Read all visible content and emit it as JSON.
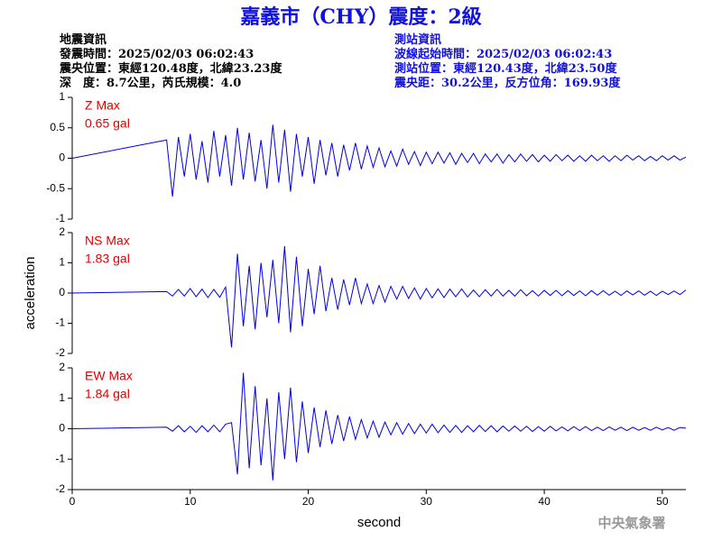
{
  "header": {
    "title": "嘉義市（CHY）震度：2級",
    "left": [
      "地震資訊",
      "發震時間：2025/02/03 06:02:43",
      "震央位置：東經120.48度，北緯23.23度",
      "深　度：8.7公里，芮氏規模：4.0"
    ],
    "right": [
      "測站資訊",
      "波線起始時間：2025/02/03 06:02:43",
      "測站位置：東經120.43度，北緯23.50度",
      "震央距：30.2公里，反方位角：169.93度"
    ]
  },
  "footer": "中央氣象署",
  "chart_data": [
    {
      "type": "line",
      "label": "Z Max",
      "max_label": "0.65 gal",
      "xlim": [
        0,
        52
      ],
      "ylim": [
        -1,
        1
      ],
      "yticks": [
        1,
        0.5,
        0,
        -0.5,
        -1
      ],
      "x": [
        0,
        8,
        8.5,
        9,
        9.5,
        10,
        10.5,
        11,
        11.5,
        12,
        12.5,
        13,
        13.5,
        14,
        14.5,
        15,
        15.5,
        16,
        16.5,
        17,
        17.5,
        18,
        18.5,
        19,
        19.5,
        20,
        20.5,
        21,
        21.5,
        22,
        22.5,
        23,
        23.5,
        24,
        24.5,
        25,
        25.5,
        26,
        26.5,
        27,
        27.5,
        28,
        28.5,
        29,
        29.5,
        30,
        30.5,
        31,
        31.5,
        32,
        32.5,
        33,
        33.5,
        34,
        34.5,
        35,
        35.5,
        36,
        36.5,
        37,
        37.5,
        38,
        38.5,
        39,
        39.5,
        40,
        40.5,
        41,
        41.5,
        42,
        42.5,
        43,
        43.5,
        44,
        44.5,
        45,
        45.5,
        46,
        46.5,
        47,
        47.5,
        48,
        48.5,
        49,
        49.5,
        50,
        50.5,
        51,
        51.5,
        52
      ],
      "series": [
        {
          "color": "#0000e0",
          "values": [
            0,
            0.3,
            -0.63,
            0.35,
            -0.3,
            0.4,
            -0.35,
            0.28,
            -0.4,
            0.45,
            -0.3,
            0.38,
            -0.45,
            0.5,
            -0.35,
            0.42,
            -0.38,
            0.3,
            -0.5,
            0.55,
            -0.4,
            0.47,
            -0.55,
            0.4,
            -0.3,
            0.35,
            -0.42,
            0.3,
            -0.28,
            0.25,
            -0.3,
            0.22,
            -0.2,
            0.25,
            -0.18,
            0.2,
            -0.15,
            0.17,
            -0.14,
            0.12,
            -0.13,
            0.15,
            -0.1,
            0.11,
            -0.12,
            0.1,
            -0.09,
            0.1,
            -0.08,
            0.09,
            -0.1,
            0.08,
            -0.07,
            0.08,
            -0.09,
            0.07,
            -0.06,
            0.07,
            -0.08,
            0.06,
            -0.06,
            0.07,
            -0.05,
            0.06,
            -0.06,
            0.05,
            -0.05,
            0.06,
            -0.04,
            0.05,
            -0.05,
            0.04,
            -0.05,
            0.05,
            -0.04,
            0.04,
            -0.05,
            0.04,
            -0.04,
            0.05,
            -0.03,
            0.04,
            -0.04,
            0.03,
            -0.04,
            0.04,
            -0.03,
            0.04,
            -0.03,
            0.02
          ]
        }
      ]
    },
    {
      "type": "line",
      "label": "NS Max",
      "max_label": "1.83 gal",
      "ylabel": "acceleration",
      "xlim": [
        0,
        52
      ],
      "ylim": [
        -2,
        2
      ],
      "yticks": [
        2,
        1,
        0,
        -1,
        -2
      ],
      "x": [
        0,
        8,
        8.5,
        9,
        9.5,
        10,
        10.5,
        11,
        11.5,
        12,
        12.5,
        13,
        13.5,
        14,
        14.5,
        15,
        15.5,
        16,
        16.5,
        17,
        17.5,
        18,
        18.5,
        19,
        19.5,
        20,
        20.5,
        21,
        21.5,
        22,
        22.5,
        23,
        23.5,
        24,
        24.5,
        25,
        25.5,
        26,
        26.5,
        27,
        27.5,
        28,
        28.5,
        29,
        29.5,
        30,
        30.5,
        31,
        31.5,
        32,
        32.5,
        33,
        33.5,
        34,
        34.5,
        35,
        35.5,
        36,
        36.5,
        37,
        37.5,
        38,
        38.5,
        39,
        39.5,
        40,
        40.5,
        41,
        41.5,
        42,
        42.5,
        43,
        43.5,
        44,
        44.5,
        45,
        45.5,
        46,
        46.5,
        47,
        47.5,
        48,
        48.5,
        49,
        49.5,
        50,
        50.5,
        51,
        51.5,
        52
      ],
      "series": [
        {
          "color": "#0000e0",
          "values": [
            0,
            0.05,
            -0.1,
            0.12,
            -0.1,
            0.15,
            -0.12,
            0.13,
            -0.15,
            0.12,
            -0.14,
            0.2,
            -1.8,
            1.3,
            -1.1,
            0.9,
            -1.2,
            1.0,
            -0.8,
            1.1,
            -1.0,
            1.55,
            -1.3,
            1.2,
            -1.1,
            0.8,
            -0.7,
            0.9,
            -0.6,
            0.5,
            -0.55,
            0.45,
            -0.4,
            0.5,
            -0.35,
            0.3,
            -0.35,
            0.25,
            -0.3,
            0.22,
            -0.2,
            0.22,
            -0.18,
            0.17,
            -0.2,
            0.15,
            -0.16,
            0.14,
            -0.15,
            0.13,
            -0.12,
            0.14,
            -0.13,
            0.1,
            -0.12,
            0.11,
            -0.1,
            0.12,
            -0.1,
            0.09,
            -0.1,
            0.11,
            -0.09,
            0.08,
            -0.1,
            0.09,
            -0.08,
            0.09,
            -0.09,
            0.08,
            -0.08,
            0.07,
            -0.09,
            0.08,
            -0.07,
            0.08,
            -0.07,
            0.06,
            -0.08,
            0.07,
            -0.06,
            0.07,
            -0.07,
            0.06,
            -0.08,
            0.06,
            -0.05,
            0.07,
            -0.05,
            0.1
          ]
        }
      ]
    },
    {
      "type": "line",
      "label": "EW Max",
      "max_label": "1.84 gal",
      "xlabel": "second",
      "xlim": [
        0,
        52
      ],
      "xticks": [
        0,
        10,
        20,
        30,
        40,
        50
      ],
      "ylim": [
        -2,
        2
      ],
      "yticks": [
        2,
        1,
        0,
        -1,
        -2
      ],
      "x": [
        0,
        8,
        8.5,
        9,
        9.5,
        10,
        10.5,
        11,
        11.5,
        12,
        12.5,
        13,
        13.5,
        14,
        14.5,
        15,
        15.5,
        16,
        16.5,
        17,
        17.5,
        18,
        18.5,
        19,
        19.5,
        20,
        20.5,
        21,
        21.5,
        22,
        22.5,
        23,
        23.5,
        24,
        24.5,
        25,
        25.5,
        26,
        26.5,
        27,
        27.5,
        28,
        28.5,
        29,
        29.5,
        30,
        30.5,
        31,
        31.5,
        32,
        32.5,
        33,
        33.5,
        34,
        34.5,
        35,
        35.5,
        36,
        36.5,
        37,
        37.5,
        38,
        38.5,
        39,
        39.5,
        40,
        40.5,
        41,
        41.5,
        42,
        42.5,
        43,
        43.5,
        44,
        44.5,
        45,
        45.5,
        46,
        46.5,
        47,
        47.5,
        48,
        48.5,
        49,
        49.5,
        50,
        50.5,
        51,
        51.5,
        52
      ],
      "series": [
        {
          "color": "#0000e0",
          "values": [
            0,
            0.05,
            -0.08,
            0.1,
            -0.1,
            0.08,
            -0.12,
            0.1,
            -0.1,
            0.12,
            -0.1,
            0.15,
            0.2,
            -1.5,
            1.84,
            -1.3,
            1.4,
            -1.2,
            1.0,
            -1.7,
            1.2,
            -1.0,
            1.35,
            -1.1,
            0.9,
            -0.8,
            0.7,
            -0.6,
            0.6,
            -0.5,
            0.45,
            -0.4,
            0.4,
            -0.35,
            0.3,
            -0.3,
            0.25,
            -0.28,
            0.22,
            -0.2,
            0.2,
            -0.18,
            0.17,
            -0.16,
            0.15,
            -0.14,
            0.15,
            -0.13,
            0.12,
            -0.12,
            0.11,
            -0.12,
            0.1,
            -0.1,
            0.11,
            -0.09,
            0.1,
            -0.1,
            0.09,
            -0.08,
            0.09,
            -0.08,
            0.08,
            -0.09,
            0.07,
            -0.08,
            0.08,
            -0.07,
            0.06,
            -0.07,
            0.07,
            -0.06,
            0.07,
            -0.06,
            0.05,
            -0.06,
            0.06,
            -0.05,
            0.05,
            -0.06,
            0.05,
            -0.05,
            0.04,
            -0.05,
            0.05,
            -0.04,
            0.04,
            -0.05,
            0.04,
            0.02
          ]
        }
      ]
    }
  ]
}
